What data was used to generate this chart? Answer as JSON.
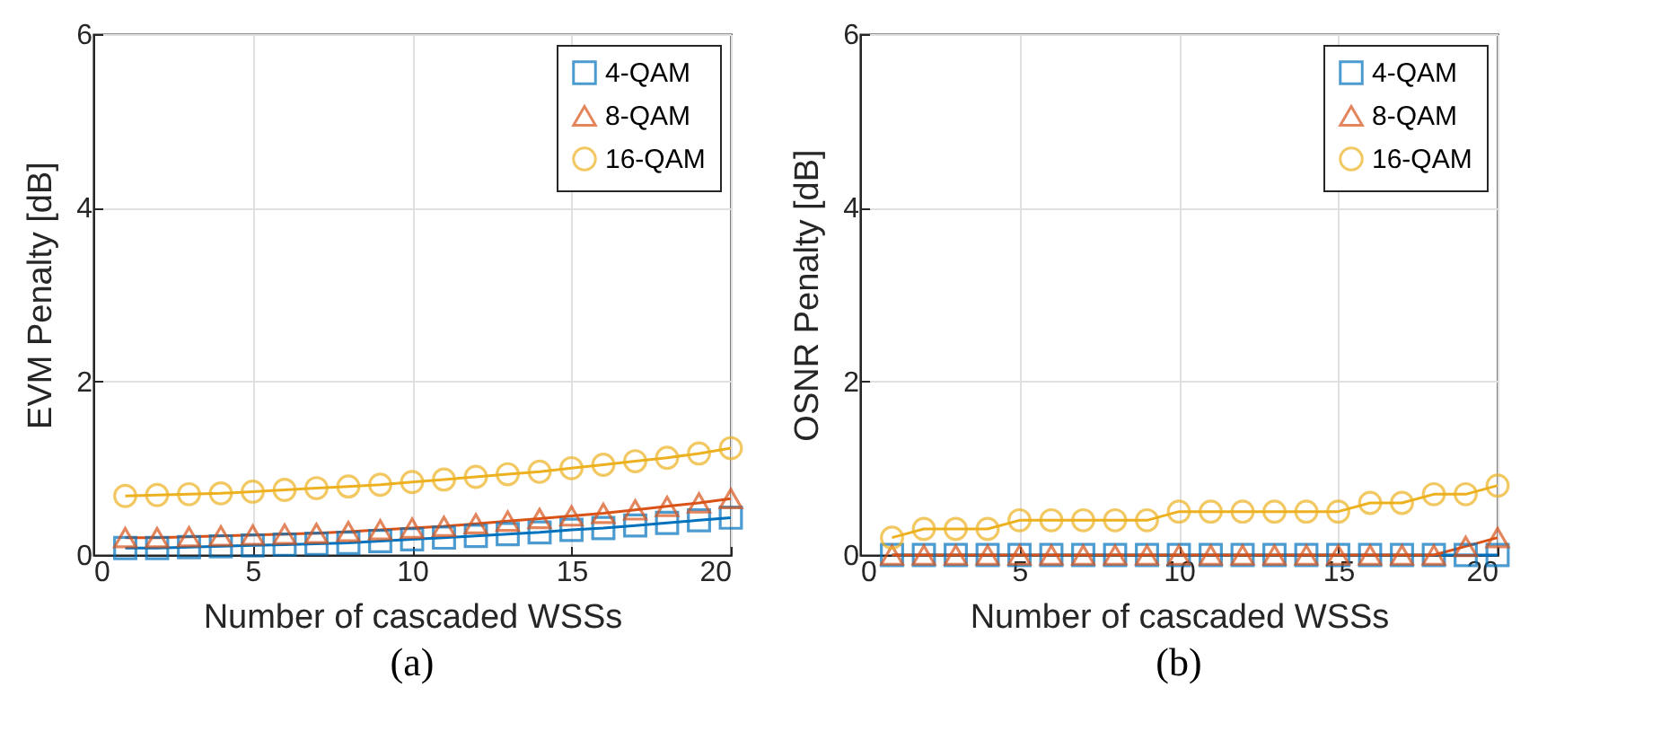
{
  "chart_data": [
    {
      "type": "line",
      "xlabel": "Number of cascaded WSSs",
      "ylabel": "EVM Penalty [dB]",
      "annotations": [
        "(a)"
      ],
      "x": [
        1,
        2,
        3,
        4,
        5,
        6,
        7,
        8,
        9,
        10,
        11,
        12,
        13,
        14,
        15,
        16,
        17,
        18,
        19,
        20
      ],
      "xlim": [
        0,
        20
      ],
      "xticks": [
        0,
        5,
        10,
        15,
        20
      ],
      "ylim": [
        0,
        6
      ],
      "yticks": [
        0,
        2,
        4,
        6
      ],
      "grid": true,
      "legend": "top right",
      "series": [
        {
          "name": "4-QAM",
          "color": "#0072bd",
          "marker": "square",
          "values": [
            0.08,
            0.08,
            0.09,
            0.1,
            0.11,
            0.12,
            0.13,
            0.14,
            0.16,
            0.18,
            0.2,
            0.22,
            0.24,
            0.26,
            0.29,
            0.31,
            0.34,
            0.37,
            0.4,
            0.43
          ]
        },
        {
          "name": "8-QAM",
          "color": "#d95319",
          "marker": "triangle",
          "values": [
            0.2,
            0.2,
            0.21,
            0.22,
            0.23,
            0.24,
            0.25,
            0.27,
            0.29,
            0.31,
            0.33,
            0.36,
            0.39,
            0.42,
            0.45,
            0.48,
            0.52,
            0.56,
            0.6,
            0.65
          ]
        },
        {
          "name": "16-QAM",
          "color": "#edb120",
          "marker": "circle",
          "values": [
            0.68,
            0.69,
            0.7,
            0.71,
            0.73,
            0.75,
            0.77,
            0.79,
            0.81,
            0.84,
            0.87,
            0.9,
            0.93,
            0.96,
            1.0,
            1.04,
            1.08,
            1.12,
            1.17,
            1.23
          ]
        }
      ]
    },
    {
      "type": "line",
      "xlabel": "Number of cascaded WSSs",
      "ylabel": "OSNR Penalty [dB]",
      "annotations": [
        "(b)"
      ],
      "x": [
        1,
        2,
        3,
        4,
        5,
        6,
        7,
        8,
        9,
        10,
        11,
        12,
        13,
        14,
        15,
        16,
        17,
        18,
        19,
        20
      ],
      "xlim": [
        0,
        20
      ],
      "xticks": [
        0,
        5,
        10,
        15,
        20
      ],
      "ylim": [
        0,
        6
      ],
      "yticks": [
        0,
        2,
        4,
        6
      ],
      "grid": true,
      "legend": "top right",
      "series": [
        {
          "name": "4-QAM",
          "color": "#0072bd",
          "marker": "square",
          "values": [
            0,
            0,
            0,
            0,
            0,
            0,
            0,
            0,
            0,
            0,
            0,
            0,
            0,
            0,
            0,
            0,
            0,
            0,
            0,
            0
          ]
        },
        {
          "name": "8-QAM",
          "color": "#d95319",
          "marker": "triangle",
          "values": [
            0,
            0,
            0,
            0,
            0,
            0,
            0,
            0,
            0,
            0,
            0,
            0,
            0,
            0,
            0,
            0,
            0,
            0,
            0.1,
            0.2
          ]
        },
        {
          "name": "16-QAM",
          "color": "#edb120",
          "marker": "circle",
          "values": [
            0.2,
            0.3,
            0.3,
            0.3,
            0.4,
            0.4,
            0.4,
            0.4,
            0.4,
            0.5,
            0.5,
            0.5,
            0.5,
            0.5,
            0.5,
            0.6,
            0.6,
            0.7,
            0.7,
            0.8
          ]
        }
      ]
    }
  ]
}
